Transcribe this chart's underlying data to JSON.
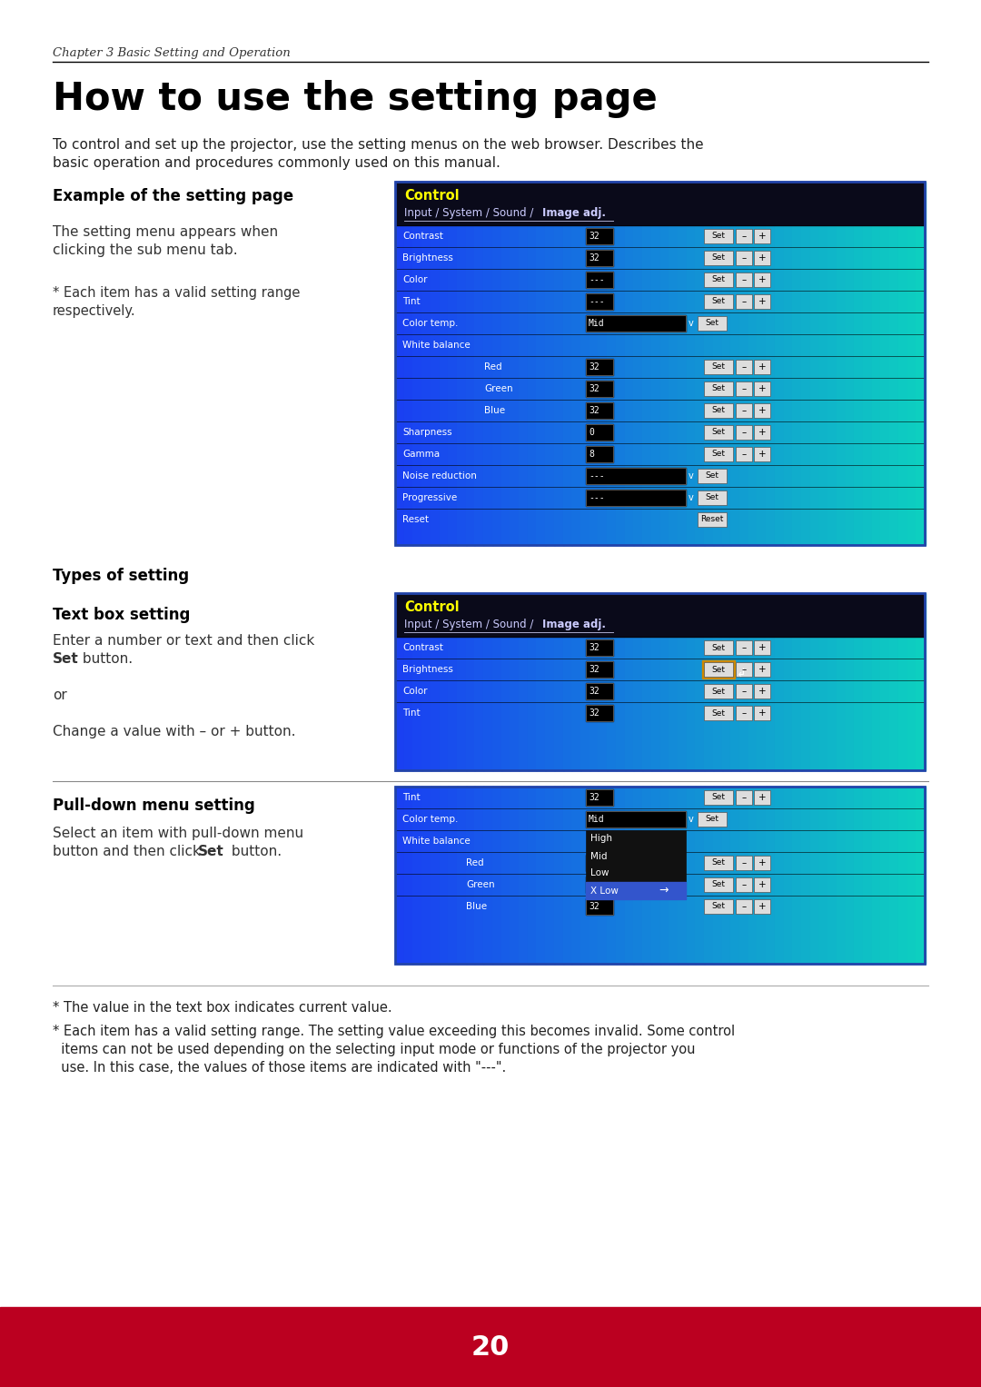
{
  "page_bg": "#ffffff",
  "footer_bg": "#bb0020",
  "chapter_text": "Chapter 3 Basic Setting and Operation",
  "title": "How to use the setting page",
  "intro1": "To control and set up the projector, use the setting menus on the web browser. Describes the",
  "intro2": "basic operation and procedures commonly used on this manual.",
  "section1_title": "Example of the setting page",
  "s1_body1a": "The setting menu appears when",
  "s1_body1b": "clicking the sub menu tab.",
  "s1_body2a": "* Each item has a valid setting range",
  "s1_body2b": "respectively.",
  "section2_title": "Types of setting",
  "section3_title": "Text box setting",
  "s3_body1": "Enter a number or text and then click",
  "s3_body2a": "Set",
  "s3_body2b": " button.",
  "s3_body3": "or",
  "s3_body4": "Change a value with – or + button.",
  "section4_title": "Pull-down menu setting",
  "s4_body1": "Select an item with pull-down menu",
  "s4_body2a": "button and then click ",
  "s4_body2b": "Set",
  "s4_body2c": " button.",
  "footnote1": "* The value in the text box indicates current value.",
  "footnote2a": "* Each item has a valid setting range. The setting value exceeding this becomes invalid. Some control",
  "footnote2b": "  items can not be used depending on the selecting input mode or functions of the projector you",
  "footnote2c": "  use. In this case, the values of those items are indicated with \"---\".",
  "page_number": "20"
}
